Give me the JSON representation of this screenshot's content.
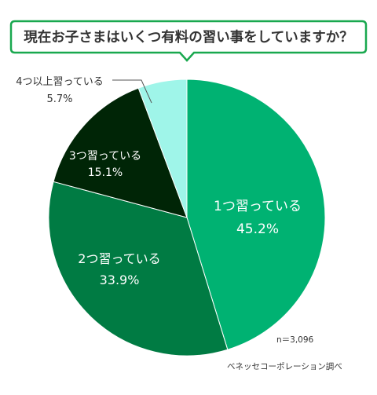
{
  "question": "現在お子さまはいくつ有料の習い事をしていますか？",
  "chart_data": {
    "type": "pie",
    "title": "現在お子さまはいくつ有料の習い事をしていますか？",
    "unit": "%",
    "slices": [
      {
        "label": "1つ習っている",
        "value": 45.2,
        "value_label": "45.2%",
        "color": "#00b272"
      },
      {
        "label": "2つ習っている",
        "value": 33.9,
        "value_label": "33.9%",
        "color": "#007b43"
      },
      {
        "label": "3つ習っている",
        "value": 15.1,
        "value_label": "15.1%",
        "color": "#002506"
      },
      {
        "label": "4つ以上習っている",
        "value": 5.7,
        "value_label": "5.7%",
        "color": "#9ff5e9"
      }
    ],
    "start_angle": "12 o'clock",
    "direction": "clockwise",
    "sample_size": "n＝3,096",
    "source": "ベネッセコーポレーション調べ"
  },
  "colors": {
    "title_border": "#19a84f",
    "text": "#333333",
    "leader_line": "#555555"
  }
}
